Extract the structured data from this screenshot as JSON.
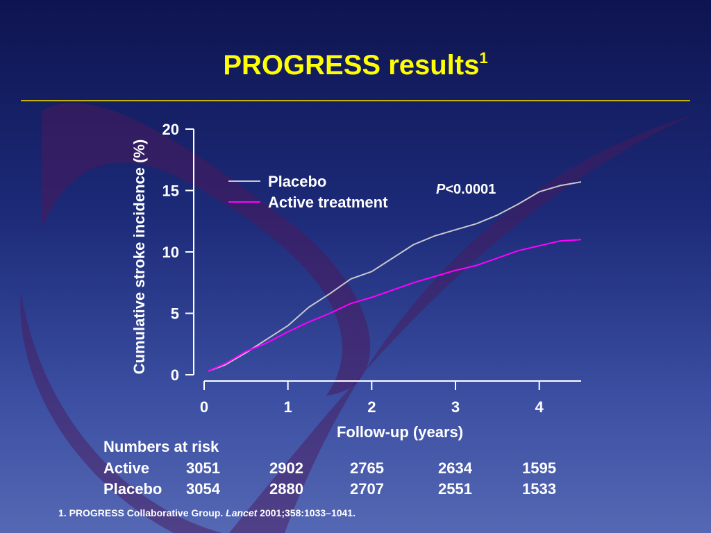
{
  "slide": {
    "title": "PROGRESS results",
    "title_superscript": "1",
    "footnote": {
      "prefix": "1. PROGRESS Collaborative Group. ",
      "journal": "Lancet",
      "suffix": " 2001;358:1033–1041."
    }
  },
  "colors": {
    "title": "#ffff00",
    "placebo": "#c8c8d0",
    "active": "#ff00ff",
    "axis": "#ffffff",
    "rule": "#c8b400"
  },
  "chart_data": {
    "type": "line",
    "xlabel": "Follow-up (years)",
    "ylabel": "Cumulative stroke incidence (%)",
    "xlim": [
      0,
      4.5
    ],
    "ylim": [
      0,
      20
    ],
    "x_ticks": [
      0,
      1,
      2,
      3,
      4
    ],
    "y_ticks": [
      0,
      5,
      10,
      15,
      20
    ],
    "legend_position": "top-left",
    "annotation": {
      "italic": "P",
      "text": "<0.0001"
    },
    "series": [
      {
        "name": "Placebo",
        "color": "#c8c8d0",
        "points": [
          [
            0.05,
            0.3
          ],
          [
            0.25,
            0.8
          ],
          [
            0.5,
            1.8
          ],
          [
            0.75,
            2.9
          ],
          [
            1.0,
            4.0
          ],
          [
            1.25,
            5.5
          ],
          [
            1.5,
            6.6
          ],
          [
            1.75,
            7.8
          ],
          [
            2.0,
            8.4
          ],
          [
            2.25,
            9.5
          ],
          [
            2.5,
            10.6
          ],
          [
            2.75,
            11.3
          ],
          [
            3.0,
            11.8
          ],
          [
            3.25,
            12.3
          ],
          [
            3.5,
            13.0
          ],
          [
            3.75,
            13.9
          ],
          [
            4.0,
            14.9
          ],
          [
            4.25,
            15.4
          ],
          [
            4.5,
            15.7
          ]
        ]
      },
      {
        "name": "Active treatment",
        "color": "#ff00ff",
        "points": [
          [
            0.05,
            0.3
          ],
          [
            0.25,
            0.9
          ],
          [
            0.5,
            1.9
          ],
          [
            0.75,
            2.6
          ],
          [
            1.0,
            3.5
          ],
          [
            1.25,
            4.3
          ],
          [
            1.5,
            5.0
          ],
          [
            1.75,
            5.8
          ],
          [
            2.0,
            6.3
          ],
          [
            2.25,
            6.9
          ],
          [
            2.5,
            7.5
          ],
          [
            2.75,
            8.0
          ],
          [
            3.0,
            8.5
          ],
          [
            3.25,
            8.9
          ],
          [
            3.5,
            9.5
          ],
          [
            3.75,
            10.1
          ],
          [
            4.0,
            10.5
          ],
          [
            4.25,
            10.9
          ],
          [
            4.5,
            11.0
          ]
        ]
      }
    ]
  },
  "risk_table": {
    "heading": "Numbers at risk",
    "rows": [
      {
        "label": "Active",
        "values": [
          "3051",
          "2902",
          "2765",
          "2634",
          "1595"
        ]
      },
      {
        "label": "Placebo",
        "values": [
          "3054",
          "2880",
          "2707",
          "2551",
          "1533"
        ]
      }
    ]
  }
}
